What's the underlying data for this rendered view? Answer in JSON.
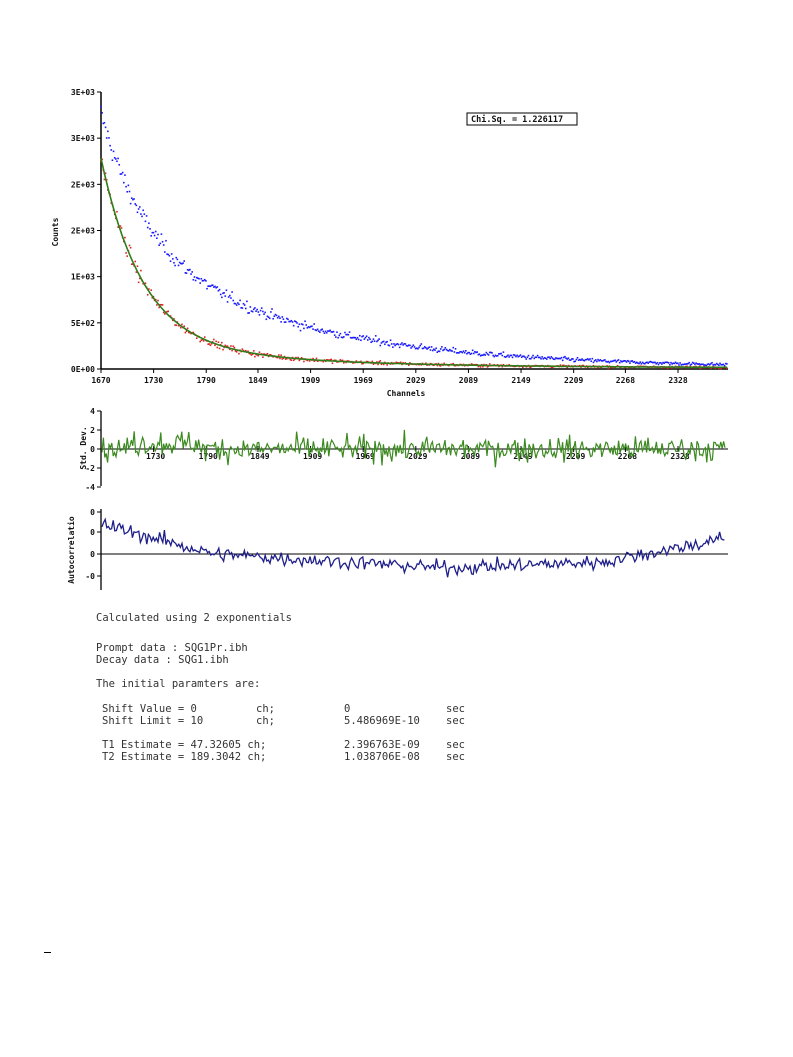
{
  "chart_data": [
    {
      "type": "scatter",
      "xlabel": "Channels",
      "ylabel": "Counts",
      "x_ticks": [
        "1670",
        "1730",
        "1790",
        "1849",
        "1909",
        "1969",
        "2029",
        "2089",
        "2149",
        "2209",
        "2268",
        "2328"
      ],
      "y_ticks": [
        "0E+00",
        "5E+02",
        "1E+03",
        "2E+03",
        "2E+03",
        "3E+03",
        "3E+03"
      ],
      "xlim": [
        1670,
        2385
      ],
      "ylim": [
        0,
        3000
      ],
      "annotation": "Chi.Sq. = 1.226117",
      "series": [
        {
          "color": "#1a1aff",
          "style": "points",
          "x_start": 1670,
          "x_end": 2385,
          "peak": 2750,
          "decay": [
            [
              0.45,
              48
            ],
            [
              0.55,
              190
            ]
          ]
        },
        {
          "color": "#dd2222",
          "style": "points",
          "x_start": 1670,
          "x_end": 2385,
          "peak": 2270,
          "decay": [
            [
              0.88,
              47
            ],
            [
              0.12,
              189
            ]
          ]
        },
        {
          "color": "#2e7d1a",
          "style": "line",
          "x_start": 1670,
          "x_end": 2385,
          "peak": 2270,
          "decay": [
            [
              0.88,
              47
            ],
            [
              0.12,
              189
            ]
          ]
        }
      ]
    },
    {
      "type": "line",
      "ylabel": "Std. Dev.",
      "y_ticks": [
        "4",
        "2",
        "0",
        "-2",
        "-4"
      ],
      "x_ticks": [
        "1730",
        "1790",
        "1849",
        "1909",
        "1969",
        "2029",
        "2089",
        "2149",
        "2209",
        "2268",
        "2328"
      ],
      "ylim": [
        -4,
        4
      ],
      "series": [
        {
          "color": "#3b8a1f"
        }
      ]
    },
    {
      "type": "line",
      "ylabel": "Autocorrelatio",
      "y_ticks": [
        "0",
        "0",
        "0",
        "-0"
      ],
      "series": [
        {
          "color": "#1f1f8a"
        }
      ]
    }
  ],
  "report": {
    "line1": "Calculated using 2 exponentials",
    "line2": "Prompt data : SQG1Pr.ibh",
    "line3": "Decay data : SQG1.ibh",
    "line4": "The initial paramters are:",
    "rows": [
      {
        "label": "Shift Value = 0",
        "unit": "ch;",
        "value": "0",
        "unit2": "sec"
      },
      {
        "label": "Shift Limit = 10",
        "unit": "ch;",
        "value": "5.486969E-10",
        "unit2": "sec"
      },
      {
        "label": "T1 Estimate = 47.32605 ch;",
        "unit": "",
        "value": "2.396763E-09",
        "unit2": "sec"
      },
      {
        "label": "T2 Estimate = 189.3042 ch;",
        "unit": "",
        "value": "1.038706E-08",
        "unit2": "sec"
      }
    ]
  }
}
